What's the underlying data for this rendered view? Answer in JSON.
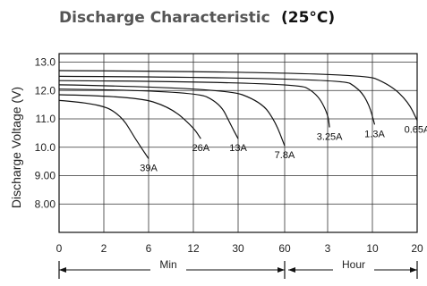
{
  "chart_data": {
    "type": "line",
    "title": "Discharge Characteristic",
    "subtitle": "(25°C)",
    "ylabel": "Discharge Voltage (V)",
    "ylim": [
      7.0,
      13.3
    ],
    "yticks": [
      "13.0",
      "12.0",
      "11.0",
      "10.0",
      "9.00",
      "8.00"
    ],
    "ytick_values": [
      13.0,
      12.0,
      11.0,
      10.0,
      9.0,
      8.0
    ],
    "xticks": [
      "0",
      "2",
      "6",
      "12",
      "30",
      "60",
      "3",
      "10",
      "20"
    ],
    "x_segments": [
      {
        "label": "Min"
      },
      {
        "label": "Hour"
      }
    ],
    "grid": true,
    "series": [
      {
        "name": "39A",
        "t_hours": [
          0,
          0.03,
          0.06,
          0.08,
          0.1
        ],
        "voltage": [
          11.65,
          11.55,
          11.1,
          10.3,
          9.6
        ]
      },
      {
        "name": "26A",
        "t_hours": [
          0,
          0.08,
          0.15,
          0.2,
          0.25
        ],
        "voltage": [
          11.85,
          11.8,
          11.4,
          10.7,
          10.3
        ]
      },
      {
        "name": "13A",
        "t_hours": [
          0,
          0.2,
          0.38,
          0.45,
          0.5
        ],
        "voltage": [
          12.05,
          12.0,
          11.55,
          10.8,
          10.3
        ]
      },
      {
        "name": "7.8A",
        "t_hours": [
          0,
          0.4,
          0.75,
          0.9,
          1.0
        ],
        "voltage": [
          12.2,
          12.1,
          11.6,
          10.9,
          10.05
        ]
      },
      {
        "name": "3.25A",
        "t_hours": [
          0,
          1.5,
          2.5,
          3.0,
          3.3
        ],
        "voltage": [
          12.35,
          12.3,
          11.9,
          11.2,
          10.7
        ]
      },
      {
        "name": "1.3A",
        "t_hours": [
          0,
          5,
          8,
          9.5,
          10.5
        ],
        "voltage": [
          12.5,
          12.45,
          12.05,
          11.5,
          10.8
        ]
      },
      {
        "name": "0.65A",
        "t_hours": [
          0,
          8,
          14,
          18,
          20
        ],
        "voltage": [
          12.7,
          12.65,
          12.2,
          11.6,
          10.95
        ]
      }
    ]
  }
}
